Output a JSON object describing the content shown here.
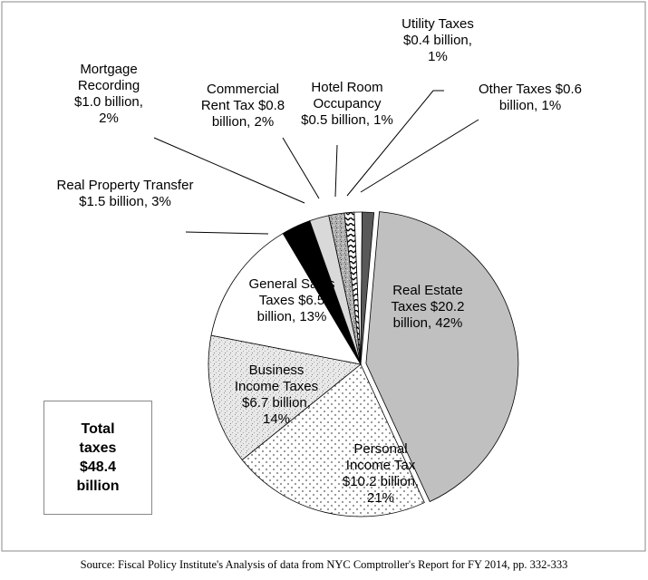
{
  "chart_data": {
    "type": "pie",
    "categories": [
      "Real Estate Taxes",
      "Personal Income Tax",
      "Business Income Taxes",
      "General Sales Taxes",
      "Real Property Transfer",
      "Mortgage Recording",
      "Commercial Rent Tax",
      "Hotel Room Occupancy",
      "Utility Taxes",
      "Other Taxes"
    ],
    "values": [
      20.2,
      10.2,
      6.7,
      6.5,
      1.5,
      1.0,
      0.8,
      0.5,
      0.4,
      0.6
    ],
    "value_labels": [
      "$20.2 billion, 42%",
      "$10.2 billion, 21%",
      "$6.7 billion, 14%",
      "$6.5 billion, 13%",
      "$1.5 billion, 3%",
      "$1.0 billion, 2%",
      "$0.8 billion, 2%",
      "$0.5 billion, 1%",
      "$0.4 billion, 1%",
      "$0.6 billion, 1%"
    ],
    "colors": [
      "#c0c0c0",
      "#ffffff",
      "#e6e6e6",
      "#ffffff",
      "#000000",
      "#d9d9d9",
      "#a6a6a6",
      "#ffffff",
      "#ffffff",
      "#595959"
    ],
    "annotation": "Total taxes $48.4 billion",
    "source": "Source:  Fiscal Policy Institute's Analysis of data from NYC Comptroller's Report for FY 2014, pp. 332-333"
  }
}
